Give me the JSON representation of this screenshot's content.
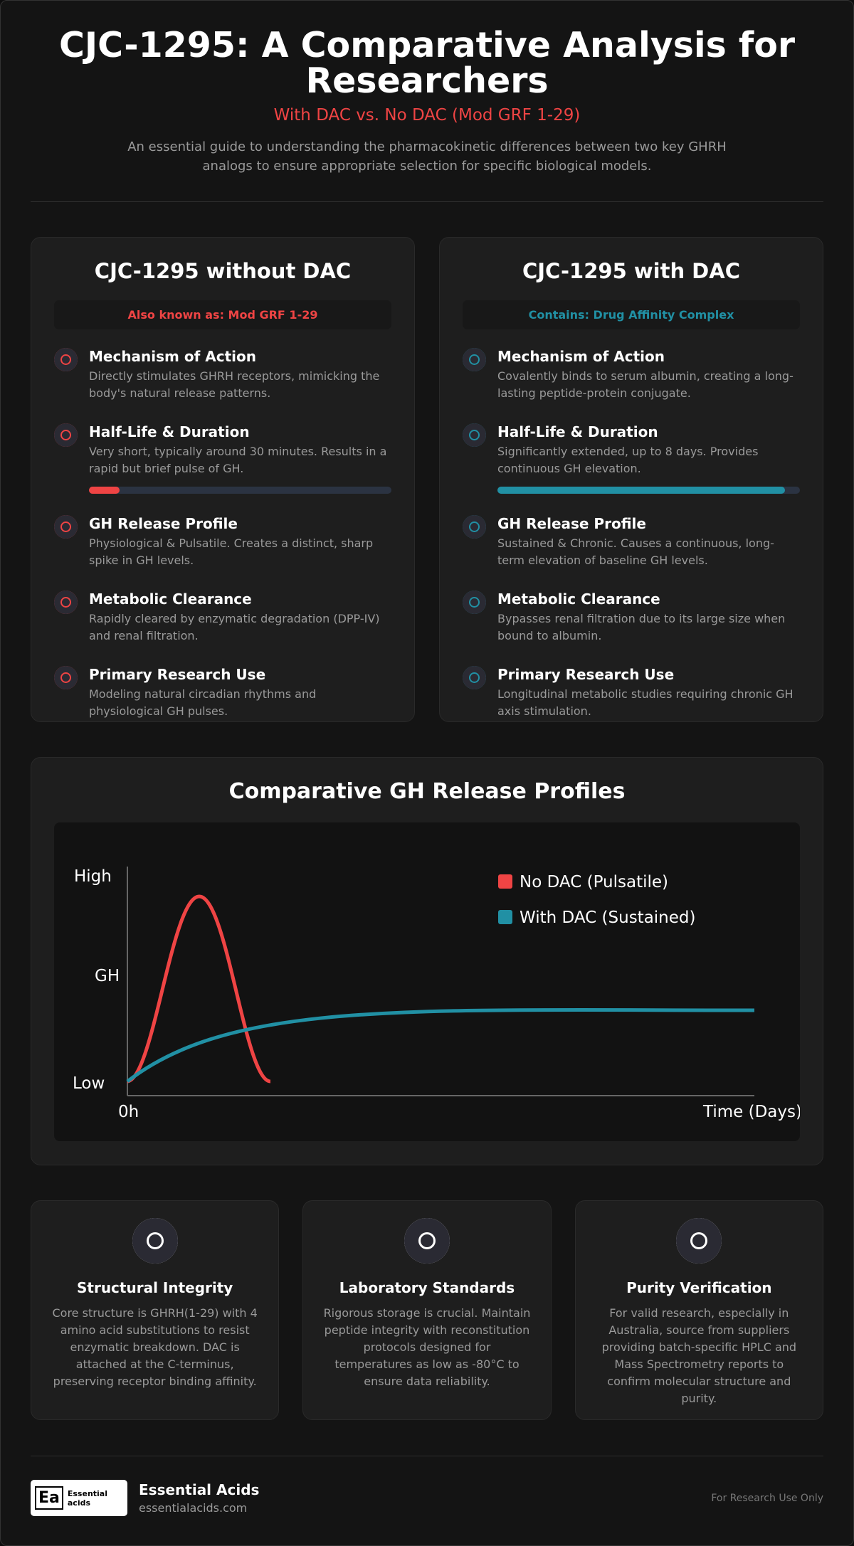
{
  "header": {
    "title": "CJC-1295: A Comparative Analysis for Researchers",
    "subtitle": "With DAC vs. No DAC (Mod GRF 1-29)",
    "description": "An essential guide to understanding the pharmacokinetic differences between two key GHRH analogs to ensure appropriate selection for specific biological models."
  },
  "cards": [
    {
      "title": "CJC-1295 without DAC",
      "tag": "Also known as: Mod GRF 1-29",
      "items": [
        {
          "heading": "Mechanism of Action",
          "text": "Directly stimulates GHRH receptors, mimicking the body's natural release patterns."
        },
        {
          "heading": "Half-Life & Duration",
          "text": "Very short, typically around 30 minutes. Results in a rapid but brief pulse of GH."
        },
        {
          "heading": "GH Release Profile",
          "text": "Physiological & Pulsatile. Creates a distinct, sharp spike in GH levels."
        },
        {
          "heading": "Metabolic Clearance",
          "text": "Rapidly cleared by enzymatic degradation (DPP-IV) and renal filtration."
        },
        {
          "heading": "Primary Research Use",
          "text": "Modeling natural circadian rhythms and physiological GH pulses."
        }
      ]
    },
    {
      "title": "CJC-1295 with DAC",
      "tag": "Contains: Drug Affinity Complex",
      "items": [
        {
          "heading": "Mechanism of Action",
          "text": "Covalently binds to serum albumin, creating a long-lasting peptide-protein conjugate."
        },
        {
          "heading": "Half-Life & Duration",
          "text": "Significantly extended, up to 8 days. Provides continuous GH elevation."
        },
        {
          "heading": "GH Release Profile",
          "text": "Sustained & Chronic. Causes a continuous, long-term elevation of baseline GH levels."
        },
        {
          "heading": "Metabolic Clearance",
          "text": "Bypasses renal filtration due to its large size when bound to albumin."
        },
        {
          "heading": "Primary Research Use",
          "text": "Longitudinal metabolic studies requiring chronic GH axis stimulation."
        }
      ]
    }
  ],
  "chart": {
    "title": "Comparative GH Release Profiles",
    "y_labels": [
      "High",
      "GH",
      "Low"
    ],
    "x_labels": [
      "0h",
      "Time (Days)"
    ],
    "legend": [
      "No DAC (Pulsatile)",
      "With DAC (Sustained)"
    ]
  },
  "features": [
    {
      "title": "Structural Integrity",
      "text": "Core structure is GHRH(1-29) with 4 amino acid substitutions to resist enzymatic breakdown. DAC is attached at the C-terminus, preserving receptor binding affinity."
    },
    {
      "title": "Laboratory Standards",
      "text": "Rigorous storage is crucial. Maintain peptide integrity with reconstitution protocols designed for temperatures as low as -80°C to ensure data reliability."
    },
    {
      "title": "Purity Verification",
      "text": "For valid research, especially in Australia, source from suppliers providing batch-specific HPLC and Mass Spectrometry reports to confirm molecular structure and purity."
    }
  ],
  "footer": {
    "logo_mark": "Ea",
    "logo_text": "Essential acids",
    "brand": "Essential Acids",
    "url": "essentialacids.com",
    "note": "For Research Use Only"
  }
}
